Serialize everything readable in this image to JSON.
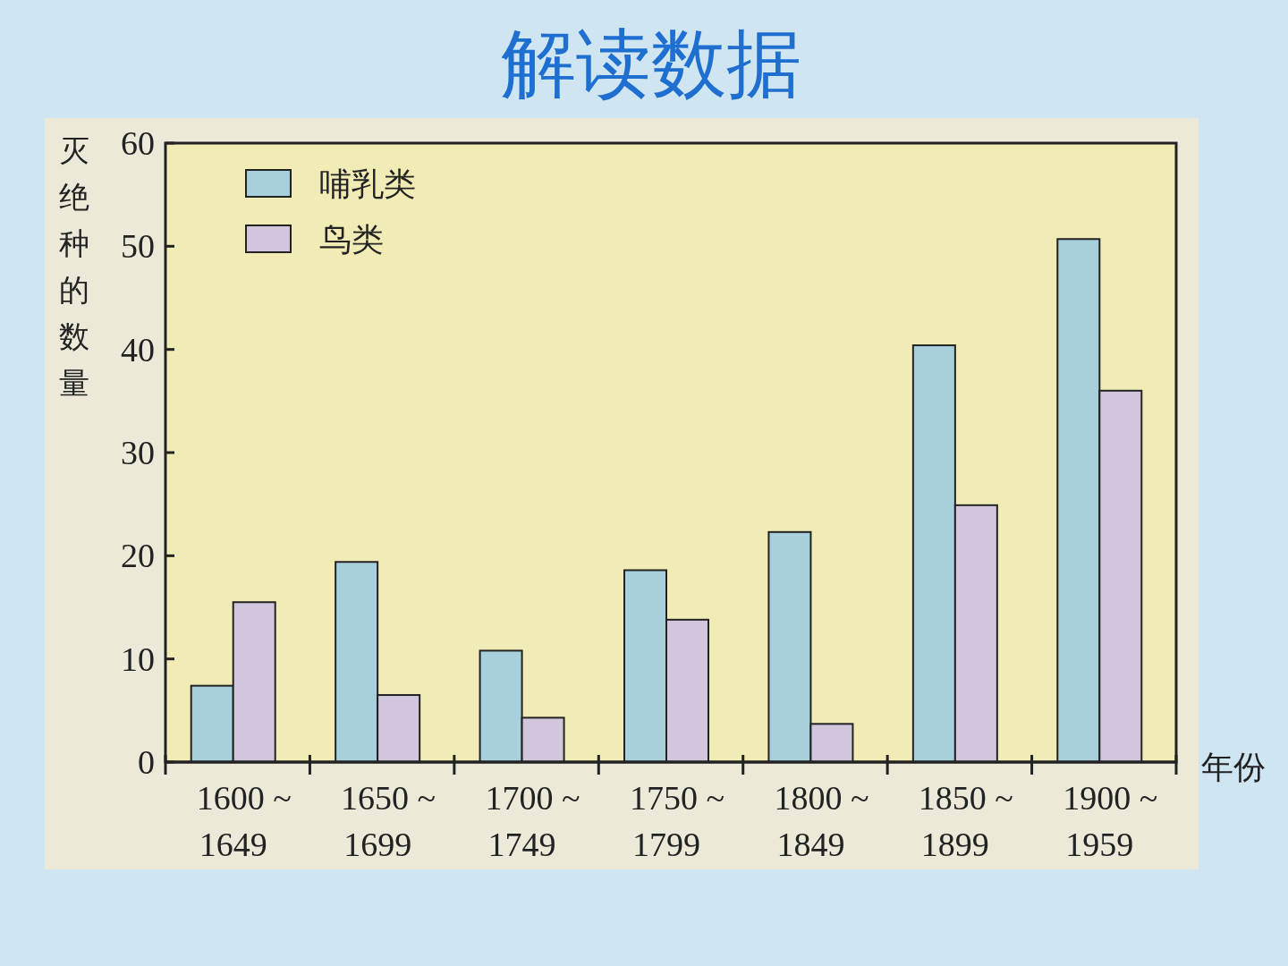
{
  "chart_data": {
    "type": "bar",
    "title": "解读数据",
    "ylabel": "灭绝种的数量",
    "xlabel": "年份",
    "categories": [
      "1600 ~ 1649",
      "1650 ~ 1699",
      "1700 ~ 1749",
      "1750 ~ 1799",
      "1800 ~ 1849",
      "1850 ~ 1899",
      "1900 ~ 1959"
    ],
    "series": [
      {
        "name": "哺乳类",
        "color": "#a8d0dc",
        "values": [
          7.4,
          19.4,
          10.8,
          18.6,
          22.3,
          40.4,
          50.7
        ]
      },
      {
        "name": "鸟类",
        "color": "#d2c6dc",
        "values": [
          15.5,
          6.5,
          4.3,
          13.8,
          3.7,
          24.9,
          36.0
        ]
      }
    ],
    "ylim": [
      0,
      60
    ],
    "yticks": [
      0,
      10,
      20,
      30,
      40,
      50,
      60
    ],
    "legend": "top left"
  }
}
